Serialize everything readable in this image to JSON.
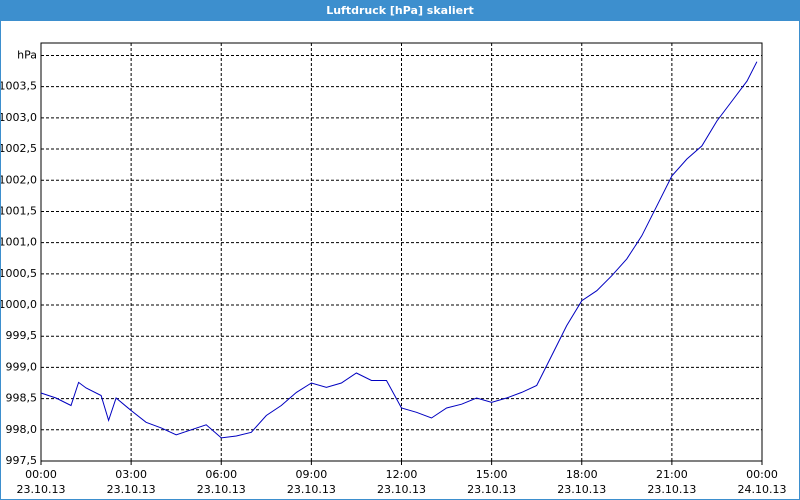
{
  "chart_data": {
    "type": "line",
    "title": "Luftdruck [hPa] skaliert",
    "x": [
      0,
      0.5,
      1,
      1.25,
      1.5,
      2,
      2.25,
      2.5,
      3,
      3.5,
      4,
      4.5,
      5,
      5.5,
      6,
      6.5,
      7,
      7.5,
      8,
      8.5,
      9,
      9.5,
      10,
      10.5,
      11,
      11.5,
      12,
      12.5,
      13,
      13.5,
      14,
      14.5,
      15,
      15.5,
      16,
      16.5,
      17,
      17.5,
      18,
      18.5,
      19,
      19.5,
      20,
      20.5,
      21,
      21.5,
      22,
      22.5,
      23,
      23.5,
      23.83
    ],
    "series": [
      {
        "name": "Luftdruck",
        "color": "#0000c0",
        "values": [
          998.59,
          998.51,
          998.39,
          998.76,
          998.67,
          998.55,
          998.15,
          998.51,
          998.31,
          998.12,
          998.03,
          997.92,
          998.0,
          998.08,
          997.87,
          997.9,
          997.96,
          998.23,
          998.39,
          998.6,
          998.75,
          998.68,
          998.75,
          998.91,
          998.79,
          998.79,
          998.35,
          998.28,
          998.19,
          998.35,
          998.41,
          998.51,
          998.44,
          998.51,
          998.6,
          998.71,
          999.19,
          999.67,
          1000.07,
          1000.23,
          1000.47,
          1000.74,
          1001.11,
          1001.59,
          1002.07,
          1002.34,
          1002.55,
          1002.95,
          1003.27,
          1003.59,
          1003.9
        ]
      }
    ],
    "xlim": [
      0,
      24
    ],
    "xticks": [
      {
        "value": 0,
        "label": "00:00\n23.10.13"
      },
      {
        "value": 3,
        "label": "03:00\n23.10.13"
      },
      {
        "value": 6,
        "label": "06:00\n23.10.13"
      },
      {
        "value": 9,
        "label": "09:00\n23.10.13"
      },
      {
        "value": 12,
        "label": "12:00\n23.10.13"
      },
      {
        "value": 15,
        "label": "15:00\n23.10.13"
      },
      {
        "value": 18,
        "label": "18:00\n23.10.13"
      },
      {
        "value": 21,
        "label": "21:00\n23.10.13"
      },
      {
        "value": 24,
        "label": "00:00\n24.10.13"
      }
    ],
    "ylim": [
      997.5,
      1004.2
    ],
    "yticks": [
      {
        "value": 997.5,
        "label": "997,5"
      },
      {
        "value": 998,
        "label": "998,0"
      },
      {
        "value": 998.5,
        "label": "998,5"
      },
      {
        "value": 999,
        "label": "999,0"
      },
      {
        "value": 999.5,
        "label": "999,5"
      },
      {
        "value": 1000,
        "label": "1000,0"
      },
      {
        "value": 1000.5,
        "label": "1000,5"
      },
      {
        "value": 1001,
        "label": "1001,0"
      },
      {
        "value": 1001.5,
        "label": "1001,5"
      },
      {
        "value": 1002,
        "label": "1002,0"
      },
      {
        "value": 1002.5,
        "label": "1002,5"
      },
      {
        "value": 1003,
        "label": "1003,0"
      },
      {
        "value": 1003.5,
        "label": "1003,5"
      },
      {
        "value": 1004,
        "label": "hPa"
      }
    ],
    "grid": true
  }
}
